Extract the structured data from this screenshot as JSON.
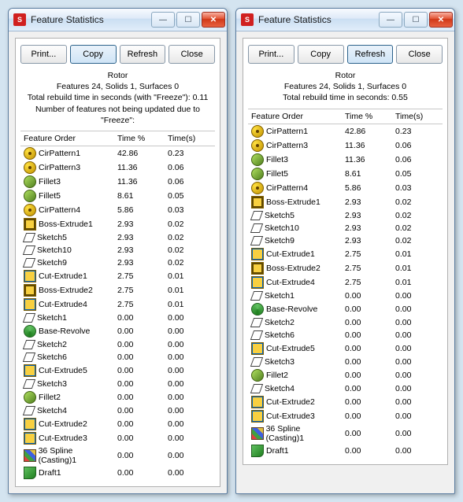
{
  "windows": [
    {
      "title": "Feature Statistics",
      "active_button_index": 1,
      "summary": {
        "part_name": "Rotor",
        "line_features": "Features 24, Solids 1, Surfaces 0",
        "line_rebuild": "Total rebuild time in seconds (with \"Freeze\"): 0.11",
        "line_extra": "Number of features not being updated due to \"Freeze\":"
      }
    },
    {
      "title": "Feature Statistics",
      "active_button_index": 2,
      "summary": {
        "part_name": "Rotor",
        "line_features": "Features 24, Solids 1, Surfaces 0",
        "line_rebuild": "Total rebuild time in seconds: 0.55",
        "line_extra": ""
      }
    }
  ],
  "buttons": {
    "print": "Print...",
    "copy": "Copy",
    "refresh": "Refresh",
    "close": "Close"
  },
  "columns": {
    "c1": "Feature Order",
    "c2": "Time %",
    "c3": "Time(s)"
  },
  "features": [
    {
      "icon": "cirpattern",
      "name": "CirPattern1",
      "pct": "42.86",
      "time": "0.23"
    },
    {
      "icon": "cirpattern",
      "name": "CirPattern3",
      "pct": "11.36",
      "time": "0.06"
    },
    {
      "icon": "fillet",
      "name": "Fillet3",
      "pct": "11.36",
      "time": "0.06"
    },
    {
      "icon": "fillet",
      "name": "Fillet5",
      "pct": "8.61",
      "time": "0.05"
    },
    {
      "icon": "cirpattern",
      "name": "CirPattern4",
      "pct": "5.86",
      "time": "0.03"
    },
    {
      "icon": "boss",
      "name": "Boss-Extrude1",
      "pct": "2.93",
      "time": "0.02"
    },
    {
      "icon": "sketch",
      "name": "Sketch5",
      "pct": "2.93",
      "time": "0.02"
    },
    {
      "icon": "sketch",
      "name": "Sketch10",
      "pct": "2.93",
      "time": "0.02"
    },
    {
      "icon": "sketch",
      "name": "Sketch9",
      "pct": "2.93",
      "time": "0.02"
    },
    {
      "icon": "cut",
      "name": "Cut-Extrude1",
      "pct": "2.75",
      "time": "0.01"
    },
    {
      "icon": "boss",
      "name": "Boss-Extrude2",
      "pct": "2.75",
      "time": "0.01"
    },
    {
      "icon": "cut",
      "name": "Cut-Extrude4",
      "pct": "2.75",
      "time": "0.01"
    },
    {
      "icon": "sketch",
      "name": "Sketch1",
      "pct": "0.00",
      "time": "0.00"
    },
    {
      "icon": "revolve",
      "name": "Base-Revolve",
      "pct": "0.00",
      "time": "0.00"
    },
    {
      "icon": "sketch",
      "name": "Sketch2",
      "pct": "0.00",
      "time": "0.00"
    },
    {
      "icon": "sketch",
      "name": "Sketch6",
      "pct": "0.00",
      "time": "0.00"
    },
    {
      "icon": "cut",
      "name": "Cut-Extrude5",
      "pct": "0.00",
      "time": "0.00"
    },
    {
      "icon": "sketch",
      "name": "Sketch3",
      "pct": "0.00",
      "time": "0.00"
    },
    {
      "icon": "fillet",
      "name": "Fillet2",
      "pct": "0.00",
      "time": "0.00"
    },
    {
      "icon": "sketch",
      "name": "Sketch4",
      "pct": "0.00",
      "time": "0.00"
    },
    {
      "icon": "cut",
      "name": "Cut-Extrude2",
      "pct": "0.00",
      "time": "0.00"
    },
    {
      "icon": "cut",
      "name": "Cut-Extrude3",
      "pct": "0.00",
      "time": "0.00"
    },
    {
      "icon": "spline",
      "name": "36 Spline (Casting)1",
      "pct": "0.00",
      "time": "0.00"
    },
    {
      "icon": "draft",
      "name": "Draft1",
      "pct": "0.00",
      "time": "0.00"
    }
  ]
}
